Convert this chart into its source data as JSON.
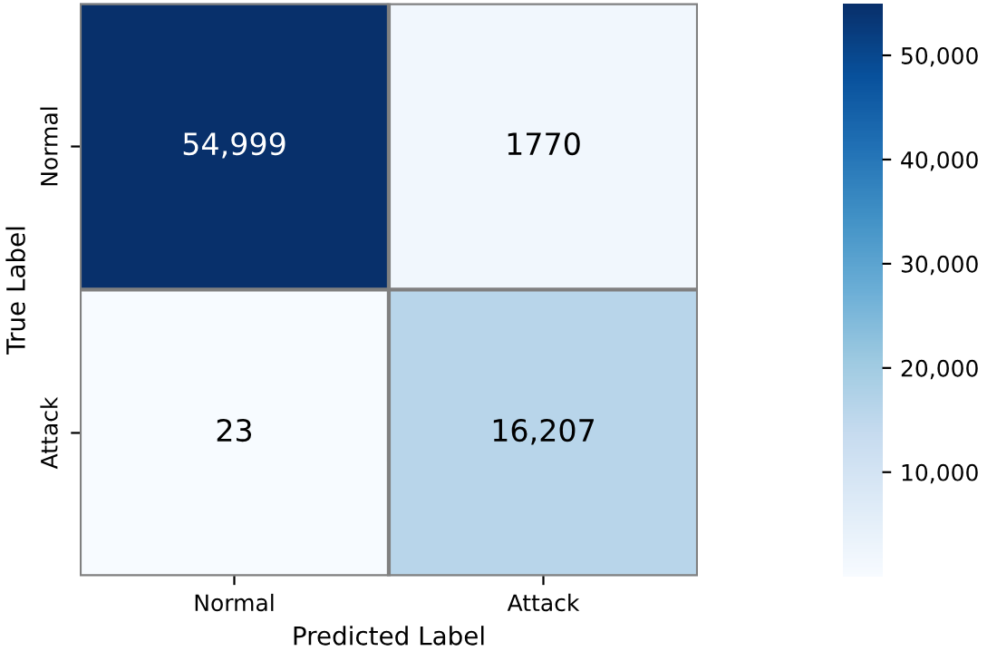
{
  "chart_data": {
    "type": "heatmap",
    "xlabel": "Predicted Label",
    "ylabel": "True Label",
    "categories": [
      "Normal",
      "Attack"
    ],
    "y_categories": [
      "Normal",
      "Attack"
    ],
    "cells": [
      [
        54999,
        1770
      ],
      [
        23,
        16207
      ]
    ],
    "cell_labels": [
      [
        "54,999",
        "1770"
      ],
      [
        "23",
        "16,207"
      ]
    ],
    "clim": [
      23,
      54999
    ],
    "cticks": [
      {
        "value": 10000,
        "label": "10,000"
      },
      {
        "value": 20000,
        "label": "20,000"
      },
      {
        "value": 30000,
        "label": "30,000"
      },
      {
        "value": 40000,
        "label": "40,000"
      },
      {
        "value": 50000,
        "label": "50,000"
      }
    ]
  }
}
